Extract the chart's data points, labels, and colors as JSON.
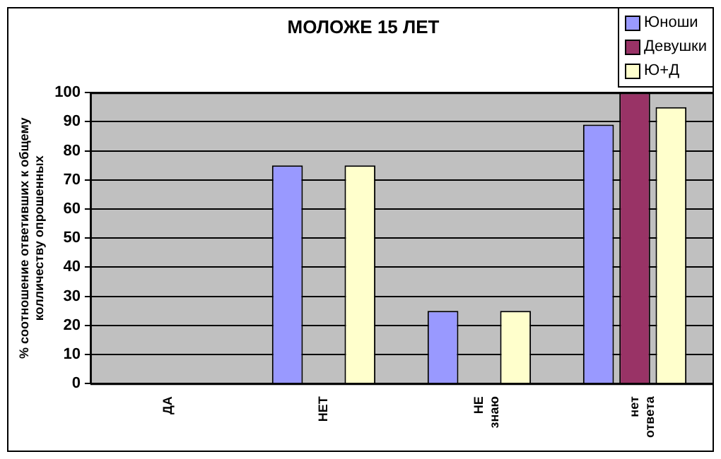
{
  "chart_data": {
    "type": "bar",
    "title": "МОЛОЖЕ 15 ЛЕТ",
    "ylabel": "% соотношение ответивших к общему колличеству опрошенных",
    "categories": [
      "ДА",
      "НЕТ",
      "НЕ знаю",
      "нет ответа"
    ],
    "series": [
      {
        "name": "Юноши",
        "color": "#9999ff",
        "values": [
          0,
          75,
          25,
          89
        ]
      },
      {
        "name": "Девушки",
        "color": "#993366",
        "values": [
          0,
          0,
          0,
          100
        ]
      },
      {
        "name": "Ю+Д",
        "color": "#ffffcc",
        "values": [
          0,
          75,
          25,
          95
        ]
      }
    ],
    "ylim": [
      0,
      100
    ],
    "yticks": [
      0,
      10,
      20,
      30,
      40,
      50,
      60,
      70,
      80,
      90,
      100
    ],
    "grid": "y",
    "legend": "top right"
  }
}
